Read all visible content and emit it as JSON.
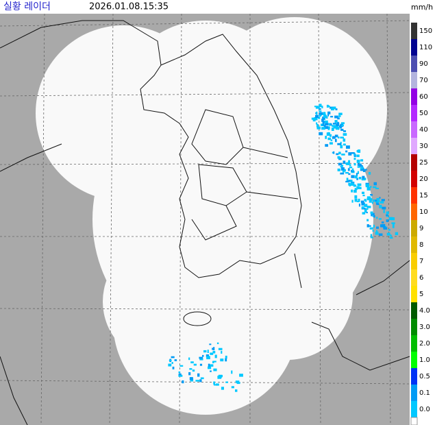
{
  "header": {
    "title": "실황 레이더",
    "timestamp": "2026.01.08.15:35",
    "unit": "mm/h"
  },
  "legend": {
    "items": [
      {
        "label": "150",
        "color": "#333333"
      },
      {
        "label": "110",
        "color": "#000390"
      },
      {
        "label": "90",
        "color": "#4c4eb1"
      },
      {
        "label": "70",
        "color": "#b3b4de"
      },
      {
        "label": "60",
        "color": "#9300e4"
      },
      {
        "label": "50",
        "color": "#b329ff"
      },
      {
        "label": "40",
        "color": "#c969ff"
      },
      {
        "label": "30",
        "color": "#e0a9ff"
      },
      {
        "label": "25",
        "color": "#b40000"
      },
      {
        "label": "20",
        "color": "#d20000"
      },
      {
        "label": "15",
        "color": "#ff3200"
      },
      {
        "label": "10",
        "color": "#ff6600"
      },
      {
        "label": "9",
        "color": "#ccaa00"
      },
      {
        "label": "8",
        "color": "#e0b900"
      },
      {
        "label": "7",
        "color": "#f9cd00"
      },
      {
        "label": "6",
        "color": "#ffdc1f"
      },
      {
        "label": "5",
        "color": "#ffe100"
      },
      {
        "label": "4.0",
        "color": "#005a00"
      },
      {
        "label": "3.0",
        "color": "#008c00"
      },
      {
        "label": "2.0",
        "color": "#00be00"
      },
      {
        "label": "1.0",
        "color": "#00ff00"
      },
      {
        "label": "0.5",
        "color": "#0033f5"
      },
      {
        "label": "0.1",
        "color": "#009bf5"
      },
      {
        "label": "0.0",
        "color": "#00c8ff"
      }
    ]
  }
}
